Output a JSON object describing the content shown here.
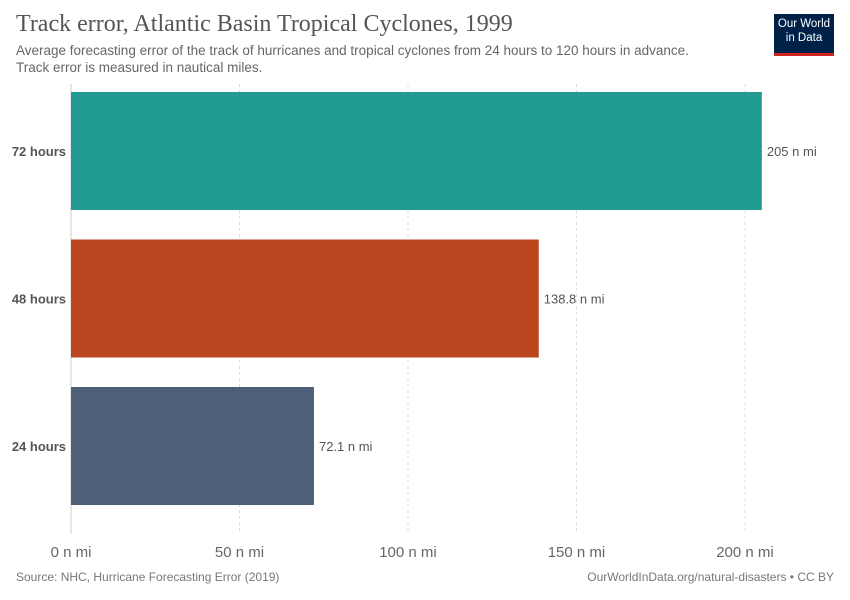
{
  "header": {
    "title": "Track error, Atlantic Basin Tropical Cyclones, 1999",
    "subtitle_line1": "Average forecasting error of the track of hurricanes and tropical cyclones from 24 hours to 120 hours in advance.",
    "subtitle_line2": "Track error is measured in nautical miles."
  },
  "logo": {
    "line1": "Our World",
    "line2": "in Data",
    "bg_color": "#002147",
    "accent_color": "#ce261e"
  },
  "chart_data": {
    "type": "bar",
    "orientation": "horizontal",
    "categories": [
      "72 hours",
      "48 hours",
      "24 hours"
    ],
    "values": [
      205,
      138.8,
      72.1
    ],
    "value_labels": [
      "205 n mi",
      "138.8 n mi",
      "72.1 n mi"
    ],
    "colors": [
      "#219b91",
      "#b9461f",
      "#4e5f78"
    ],
    "xlim": [
      0,
      200
    ],
    "x_ticks": [
      0,
      50,
      100,
      150,
      200
    ],
    "x_tick_labels": [
      "0 n mi",
      "50 n mi",
      "100 n mi",
      "150 n mi",
      "200 n mi"
    ],
    "grid": "vertical dashed",
    "legend": "none"
  },
  "footer": {
    "source": "Source: NHC, Hurricane Forecasting Error (2019)",
    "credit": "OurWorldInData.org/natural-disasters • CC BY"
  }
}
